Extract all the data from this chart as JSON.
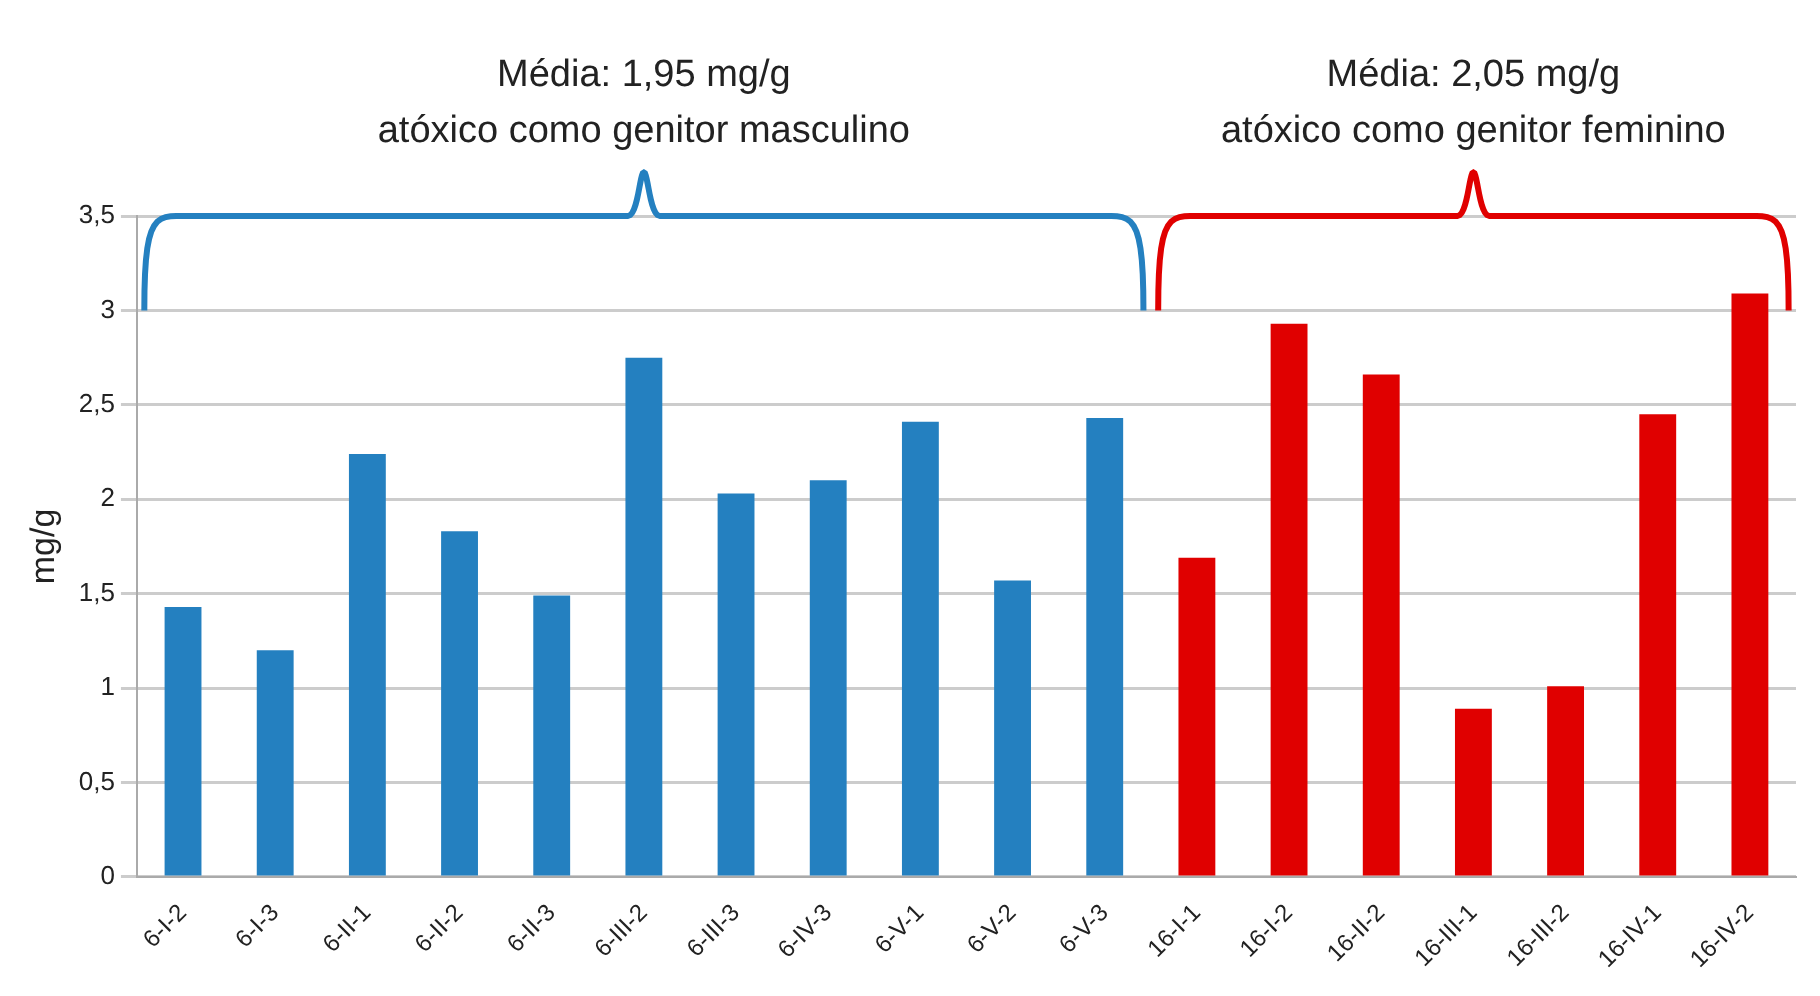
{
  "chart_data": {
    "type": "bar",
    "ylabel": "mg/g",
    "categories": [
      "6-I-2",
      "6-I-3",
      "6-II-1",
      "6-II-2",
      "6-II-3",
      "6-III-2",
      "6-III-3",
      "6-IV-3",
      "6-V-1",
      "6-V-2",
      "6-V-3",
      "16-I-1",
      "16-I-2",
      "16-II-2",
      "16-III-1",
      "16-III-2",
      "16-IV-1",
      "16-IV-2"
    ],
    "values": [
      1.43,
      1.2,
      2.24,
      1.83,
      1.49,
      2.75,
      2.03,
      2.1,
      2.41,
      1.57,
      2.43,
      1.69,
      2.93,
      2.66,
      0.89,
      1.01,
      2.45,
      3.09
    ],
    "colors": [
      "#2480c0",
      "#2480c0",
      "#2480c0",
      "#2480c0",
      "#2480c0",
      "#2480c0",
      "#2480c0",
      "#2480c0",
      "#2480c0",
      "#2480c0",
      "#2480c0",
      "#e00000",
      "#e00000",
      "#e00000",
      "#e00000",
      "#e00000",
      "#e00000",
      "#e00000"
    ],
    "ylim": [
      0,
      3.5
    ],
    "yticks": [
      0,
      {
        "value": 0.5,
        "label": "0,5"
      },
      1,
      {
        "value": 1.5,
        "label": "1,5"
      },
      2,
      {
        "value": 2.5,
        "label": "2,5"
      },
      3,
      {
        "value": 3.5,
        "label": "3,5"
      }
    ],
    "grid": "y",
    "legend": false,
    "annotations": [
      "Média: 1,95 mg/g",
      "atóxico como genitor masculino",
      "Média: 2,05 mg/g",
      "atóxico como genitor feminino"
    ]
  }
}
